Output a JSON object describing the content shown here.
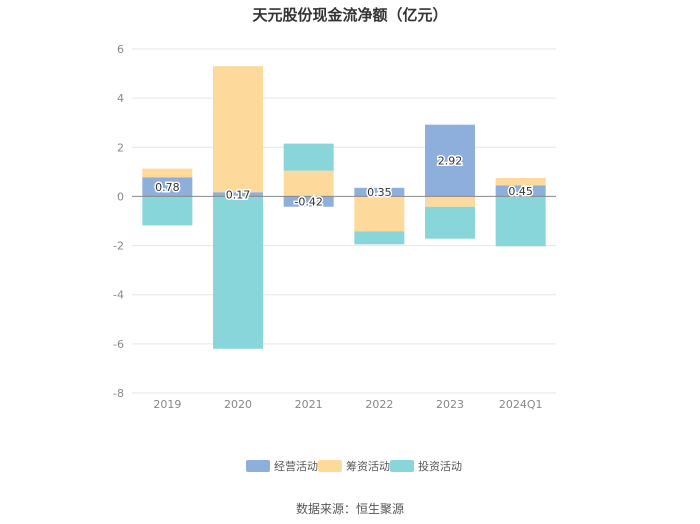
{
  "chart_data": {
    "type": "bar",
    "stacked": true,
    "title": "天元股份现金流净额（亿元）",
    "xlabel": "",
    "ylabel": "",
    "categories": [
      "2019",
      "2020",
      "2021",
      "2022",
      "2023",
      "2024Q1"
    ],
    "ylim": [
      -8,
      6
    ],
    "yticks": [
      6,
      4,
      2,
      0,
      -2,
      -4,
      -6,
      -8
    ],
    "grid": true,
    "legend_position": "bottom",
    "series": [
      {
        "name": "经营活动",
        "color": "#8eaedb",
        "values": [
          0.78,
          0.17,
          -0.42,
          0.35,
          2.92,
          0.45
        ],
        "labels": [
          "0.78",
          "0.17",
          "-0.42",
          "0.35",
          "2.92",
          "0.45"
        ]
      },
      {
        "name": "筹资活动",
        "color": "#fdd99b",
        "values": [
          0.35,
          5.13,
          1.05,
          -1.42,
          -0.42,
          0.3
        ]
      },
      {
        "name": "投资活动",
        "color": "#88d6d9",
        "values": [
          -1.18,
          -6.2,
          1.1,
          -0.53,
          -1.3,
          -2.03
        ]
      }
    ]
  },
  "source": "数据来源：恒生聚源"
}
